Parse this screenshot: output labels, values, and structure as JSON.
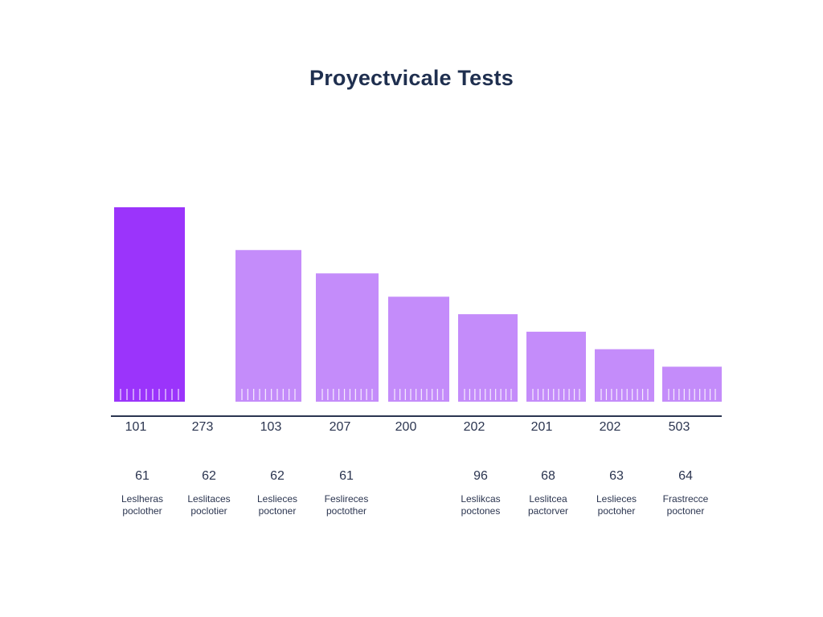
{
  "title": "Proyectvicale Tests",
  "colors": {
    "highlight": "#9b34fb",
    "bar": "#c48cfa",
    "axis": "#2b3550",
    "highlight_text": "#7a2fd6",
    "text": "#2b3550"
  },
  "chart_data": {
    "type": "bar",
    "title": "Proyectvicale Tests",
    "xlabel": "",
    "ylabel": "",
    "grid": false,
    "legend": "none",
    "highlight_index": 0,
    "highlight_label_index": 7,
    "categories": [
      {
        "tick": "101",
        "sub": "61",
        "caption": [
          "Leslheras",
          "poclother"
        ]
      },
      {
        "tick": "273",
        "sub": "62",
        "caption": [
          "Leslitaces",
          "poclotier"
        ]
      },
      {
        "tick": "103",
        "sub": "62",
        "caption": [
          "Leslieces",
          "poctoner"
        ]
      },
      {
        "tick": "207",
        "sub": "61",
        "caption": [
          "Feslireces",
          "poctother"
        ]
      },
      {
        "tick": "200",
        "sub": "",
        "caption": [
          "",
          ""
        ]
      },
      {
        "tick": "202",
        "sub": "96",
        "caption": [
          "Leslikcas",
          "poctones"
        ]
      },
      {
        "tick": "201",
        "sub": "68",
        "caption": [
          "Leslitcea",
          "pactorver"
        ]
      },
      {
        "tick": "202",
        "sub": "63",
        "caption": [
          "Leslieces",
          "poctoher"
        ]
      },
      {
        "tick": "503",
        "sub": "64",
        "caption": [
          "Frastrecce",
          "poctoner"
        ]
      }
    ],
    "values": [
      100,
      null,
      78,
      66,
      54,
      45,
      36,
      27,
      18
    ],
    "ylim": [
      0,
      100
    ]
  }
}
